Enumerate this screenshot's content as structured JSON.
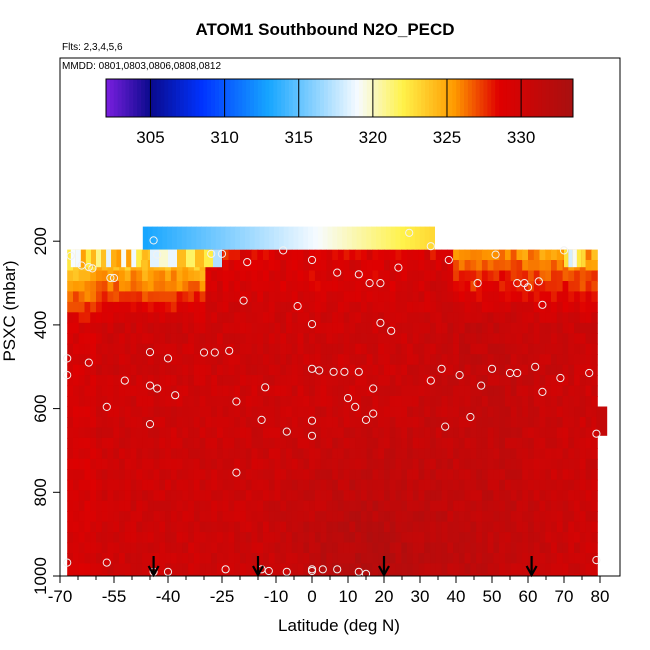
{
  "title": "ATOM1 Southbound N2O_PECD",
  "flights_note": "Flts: 2,3,4,5,6",
  "dates_note": "MMDD: 0801,0803,0806,0808,0812",
  "colors": {
    "purple": "#7b1fe0",
    "navy": "#0a0a8c",
    "blue": "#0033ff",
    "sky": "#17a6ff",
    "pale": "#f7fbff",
    "yellow": "#fff24a",
    "orange": "#ff9a00",
    "red": "#e00000",
    "darkred": "#a81010"
  },
  "chart_data": {
    "type": "heatmap",
    "title": "ATOM1 Southbound N2O_PECD",
    "xlabel": "Latitude (deg N)",
    "ylabel": "PSXC (mbar)",
    "xlim": [
      -70,
      82
    ],
    "ylim": [
      1000,
      0
    ],
    "x_ticks": [
      -70,
      -55,
      -40,
      -25,
      -10,
      0,
      10,
      20,
      30,
      40,
      50,
      60,
      70,
      80
    ],
    "x_tick_labels": [
      "-70",
      "-55",
      "-40",
      "-25",
      "-10",
      "0",
      "10",
      "20",
      "30",
      "40",
      "50",
      "60",
      "70",
      "80"
    ],
    "y_ticks": [
      200,
      400,
      600,
      800,
      1000
    ],
    "y_tick_labels": [
      "200",
      "400",
      "600",
      "800",
      "1000"
    ],
    "colorbar": {
      "min": 302,
      "max": 333.5,
      "ticks": [
        305,
        310,
        315,
        320,
        325,
        330
      ],
      "tick_labels": [
        "305",
        "310",
        "315",
        "320",
        "325",
        "330"
      ]
    },
    "field_extent": {
      "lat_range": [
        -68,
        79
      ],
      "pressure_top": 220,
      "pressure_bottom": 1000
    },
    "strat_segment": {
      "lat_range": [
        -47,
        34
      ],
      "pressure": [
        165,
        220
      ],
      "value_start": 313,
      "value_end": 323
    },
    "markers_lat": [
      -44,
      -15,
      20,
      61
    ],
    "samples": [
      {
        "lat": -44,
        "p": 198
      },
      {
        "lat": -43,
        "p": 232
      },
      {
        "lat": -67,
        "p": 235
      },
      {
        "lat": -64,
        "p": 258
      },
      {
        "lat": -62,
        "p": 262
      },
      {
        "lat": -61,
        "p": 265
      },
      {
        "lat": -56,
        "p": 288
      },
      {
        "lat": -55,
        "p": 288
      },
      {
        "lat": -40,
        "p": 480
      },
      {
        "lat": -45,
        "p": 465
      },
      {
        "lat": -62,
        "p": 490
      },
      {
        "lat": -68,
        "p": 480
      },
      {
        "lat": -68,
        "p": 520
      },
      {
        "lat": -52,
        "p": 533
      },
      {
        "lat": -45,
        "p": 545
      },
      {
        "lat": -43,
        "p": 552
      },
      {
        "lat": -38,
        "p": 568
      },
      {
        "lat": -57,
        "p": 596
      },
      {
        "lat": -45,
        "p": 637
      },
      {
        "lat": -30,
        "p": 466
      },
      {
        "lat": -27,
        "p": 466
      },
      {
        "lat": -23,
        "p": 462
      },
      {
        "lat": -21,
        "p": 583
      },
      {
        "lat": -19,
        "p": 342
      },
      {
        "lat": -28,
        "p": 230
      },
      {
        "lat": -25,
        "p": 230
      },
      {
        "lat": -18,
        "p": 250
      },
      {
        "lat": -8,
        "p": 222
      },
      {
        "lat": -4,
        "p": 355
      },
      {
        "lat": 0,
        "p": 245
      },
      {
        "lat": 0,
        "p": 398
      },
      {
        "lat": -13,
        "p": 549
      },
      {
        "lat": -14,
        "p": 627
      },
      {
        "lat": -7,
        "p": 655
      },
      {
        "lat": 0,
        "p": 629
      },
      {
        "lat": 0,
        "p": 665
      },
      {
        "lat": 0,
        "p": 505
      },
      {
        "lat": 2,
        "p": 509
      },
      {
        "lat": 6,
        "p": 512
      },
      {
        "lat": 9,
        "p": 512
      },
      {
        "lat": 13,
        "p": 512
      },
      {
        "lat": 7,
        "p": 275
      },
      {
        "lat": 13,
        "p": 279
      },
      {
        "lat": 16,
        "p": 300
      },
      {
        "lat": 19,
        "p": 300
      },
      {
        "lat": 19,
        "p": 395
      },
      {
        "lat": 22,
        "p": 414
      },
      {
        "lat": 24,
        "p": 263
      },
      {
        "lat": 27,
        "p": 180
      },
      {
        "lat": 33,
        "p": 212
      },
      {
        "lat": 38,
        "p": 245
      },
      {
        "lat": 51,
        "p": 232
      },
      {
        "lat": 46,
        "p": 300
      },
      {
        "lat": 57,
        "p": 300
      },
      {
        "lat": 59,
        "p": 300
      },
      {
        "lat": 60,
        "p": 310
      },
      {
        "lat": 63,
        "p": 296
      },
      {
        "lat": 64,
        "p": 352
      },
      {
        "lat": 70,
        "p": 222
      },
      {
        "lat": 64,
        "p": 560
      },
      {
        "lat": 62,
        "p": 500
      },
      {
        "lat": 69,
        "p": 527
      },
      {
        "lat": 77,
        "p": 515
      },
      {
        "lat": 79,
        "p": 660
      },
      {
        "lat": 36,
        "p": 505
      },
      {
        "lat": 33,
        "p": 533
      },
      {
        "lat": 41,
        "p": 520
      },
      {
        "lat": 47,
        "p": 545
      },
      {
        "lat": 50,
        "p": 505
      },
      {
        "lat": 55,
        "p": 515
      },
      {
        "lat": 57,
        "p": 515
      },
      {
        "lat": 17,
        "p": 552
      },
      {
        "lat": 10,
        "p": 575
      },
      {
        "lat": 12,
        "p": 596
      },
      {
        "lat": 17,
        "p": 612
      },
      {
        "lat": 15,
        "p": 627
      },
      {
        "lat": 37,
        "p": 643
      },
      {
        "lat": 44,
        "p": 620
      },
      {
        "lat": -21,
        "p": 753
      },
      {
        "lat": -68,
        "p": 968
      },
      {
        "lat": -57,
        "p": 968
      },
      {
        "lat": -44,
        "p": 990
      },
      {
        "lat": -40,
        "p": 990
      },
      {
        "lat": -24,
        "p": 984
      },
      {
        "lat": -14,
        "p": 984
      },
      {
        "lat": -12,
        "p": 988
      },
      {
        "lat": -7,
        "p": 990
      },
      {
        "lat": 0,
        "p": 984
      },
      {
        "lat": 0,
        "p": 988
      },
      {
        "lat": 3,
        "p": 984
      },
      {
        "lat": 7,
        "p": 984
      },
      {
        "lat": 13,
        "p": 990
      },
      {
        "lat": 15,
        "p": 995
      },
      {
        "lat": 79,
        "p": 962
      }
    ]
  }
}
